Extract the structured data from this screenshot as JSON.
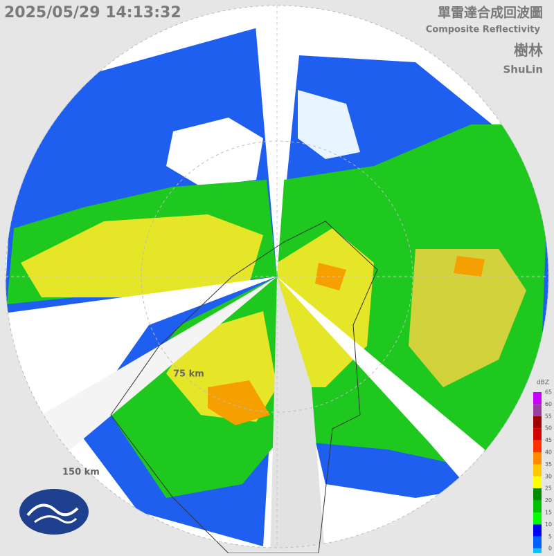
{
  "header": {
    "timestamp": "2025/05/29 14:13:32",
    "title": "單雷達合成回波圖",
    "subtitle": "Composite Reflectivity",
    "station": "樹林",
    "station_en": "ShuLin"
  },
  "rings": {
    "inner": "75 km",
    "outer": "150 km"
  },
  "legend": {
    "unit": "dBZ",
    "ticks": [
      65,
      60,
      55,
      50,
      45,
      40,
      35,
      30,
      25,
      20,
      15,
      10,
      5,
      0
    ],
    "colors": [
      "#c800ff",
      "#9a3fa0",
      "#a00000",
      "#d40000",
      "#ff3000",
      "#ff8c00",
      "#ffc800",
      "#ffff00",
      "#008c00",
      "#00c000",
      "#00ff00",
      "#0000ff",
      "#0060ff",
      "#00c8ff"
    ]
  }
}
